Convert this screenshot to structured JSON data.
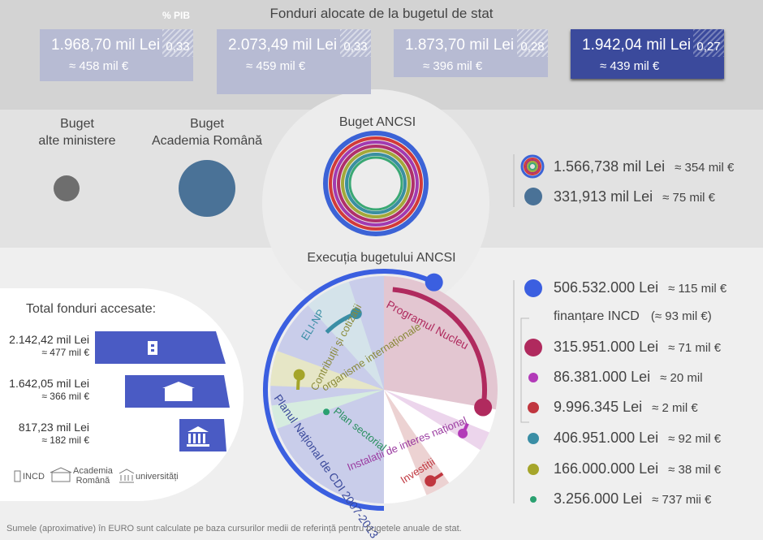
{
  "header": {
    "title": "Fonduri alocate de la bugetul de stat",
    "pib_label": "% PIB",
    "cards": [
      {
        "lei": "1.968,70 mil Lei",
        "eur": "≈ 458 mil €",
        "pib": "0,33"
      },
      {
        "lei": "2.073,49 mil Lei",
        "eur": "≈ 459 mil €",
        "pib": "0,33"
      },
      {
        "lei": "1.873,70 mil Lei",
        "eur": "≈ 396 mil €",
        "pib": "0,28"
      },
      {
        "lei": "1.942,04 mil Lei",
        "eur": "≈ 439 mil €",
        "pib": "0,27"
      }
    ]
  },
  "budgets": {
    "ministries": [
      "Buget",
      "alte ministere"
    ],
    "academy": [
      "Buget",
      "Academia Română"
    ],
    "ancsi": "Buget ANCSI",
    "legend": [
      {
        "lei": "1.566,738 mil Lei",
        "eur": "≈ 354 mil €"
      },
      {
        "lei": "331,913 mil Lei",
        "eur": "≈ 75 mil €"
      }
    ]
  },
  "execution": {
    "title": "Execuția bugetului ANCSI",
    "labels": {
      "eli": "ELI-NP",
      "contrib": [
        "Contribuții și cotizații",
        "organisme internaționale"
      ],
      "nucleu": "Programul Nucleu",
      "pn": "Planul Național de CDI 2007-2013",
      "sectorial": "Plan sectorial",
      "instalatii": "Instalații de interes național",
      "investitii": "Investiții"
    },
    "legend": [
      {
        "lei": "506.532.000 Lei",
        "eur": "≈ 115 mil €"
      },
      {
        "lei": "315.951.000 Lei",
        "eur": "≈ 71 mil €"
      },
      {
        "lei": "86.381.000 Lei",
        "eur": "≈ 20 mil"
      },
      {
        "lei": "9.996.345 Lei",
        "eur": "≈ 2 mil €"
      },
      {
        "lei": "406.951.000 Lei",
        "eur": "≈ 92 mil €"
      },
      {
        "lei": "166.000.000 Lei",
        "eur": "≈ 38 mil €"
      },
      {
        "lei": "3.256.000 Lei",
        "eur": "≈ 737 mii €"
      }
    ],
    "incd_label": "finanțare INCD",
    "incd_eur": "(≈ 93 mil €)"
  },
  "accessed": {
    "title": "Total fonduri accesate:",
    "rows": [
      {
        "lei": "2.142,42 mil Lei",
        "eur": "≈ 477 mil €"
      },
      {
        "lei": "1.642,05 mil Lei",
        "eur": "≈ 366 mil €"
      },
      {
        "lei": "817,23 mil Lei",
        "eur": "≈ 182 mil €"
      }
    ],
    "key": {
      "incd": "INCD",
      "academy": [
        "Academia",
        "Română"
      ],
      "univ": "universități"
    }
  },
  "footnote": "Sumele (aproximative) în EURO sunt calculate pe baza cursurilor medii de referință pentru bugetele anuale de stat."
}
